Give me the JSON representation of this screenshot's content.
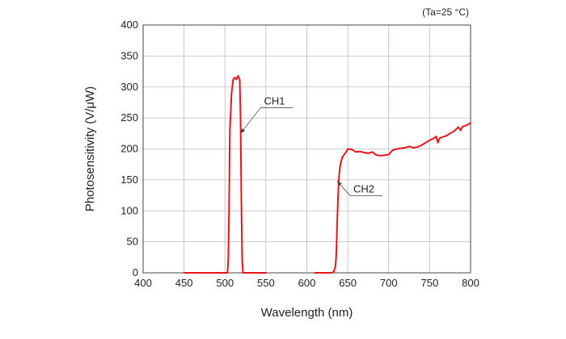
{
  "chart_data": {
    "type": "line",
    "title": "",
    "condition": "(Ta=25 °C)",
    "xlabel": "Wavelength (nm)",
    "ylabel": "Photosensitivity (V/μW)",
    "xlim": [
      400,
      800
    ],
    "ylim": [
      0,
      400
    ],
    "xticks": [
      400,
      450,
      500,
      550,
      600,
      650,
      700,
      750,
      800
    ],
    "yticks": [
      0,
      50,
      100,
      150,
      200,
      250,
      300,
      350,
      400
    ],
    "grid": true,
    "line_color": "#e8141c",
    "series": [
      {
        "name": "CH1",
        "x": [
          450,
          500,
          503,
          504,
          505,
          506,
          508,
          510,
          512,
          514,
          516,
          518,
          519,
          520,
          521,
          522,
          523,
          525,
          550
        ],
        "y": [
          0,
          0,
          0,
          20,
          100,
          230,
          290,
          312,
          315,
          312,
          318,
          312,
          250,
          120,
          20,
          0,
          0,
          0,
          0
        ]
      },
      {
        "name": "CH2",
        "x": [
          610,
          630,
          633,
          635,
          636,
          637,
          638,
          639,
          640,
          641,
          643,
          645,
          648,
          650,
          655,
          660,
          665,
          670,
          675,
          680,
          685,
          690,
          695,
          700,
          705,
          710,
          715,
          720,
          725,
          730,
          735,
          740,
          745,
          750,
          755,
          758,
          760,
          762,
          765,
          770,
          775,
          780,
          785,
          788,
          790,
          795,
          800
        ],
        "y": [
          0,
          0,
          2,
          10,
          30,
          80,
          120,
          150,
          165,
          175,
          185,
          190,
          195,
          200,
          199,
          195,
          196,
          194,
          193,
          195,
          190,
          189,
          190,
          191,
          198,
          200,
          201,
          202,
          204,
          202,
          203,
          206,
          210,
          214,
          217,
          220,
          210,
          217,
          219,
          221,
          225,
          229,
          235,
          230,
          236,
          238,
          242
        ]
      }
    ],
    "annotations": [
      {
        "text": "CH1",
        "series": "CH1",
        "x": 519,
        "y": 225
      },
      {
        "text": "CH2",
        "series": "CH2",
        "x": 637,
        "y": 148
      }
    ]
  }
}
